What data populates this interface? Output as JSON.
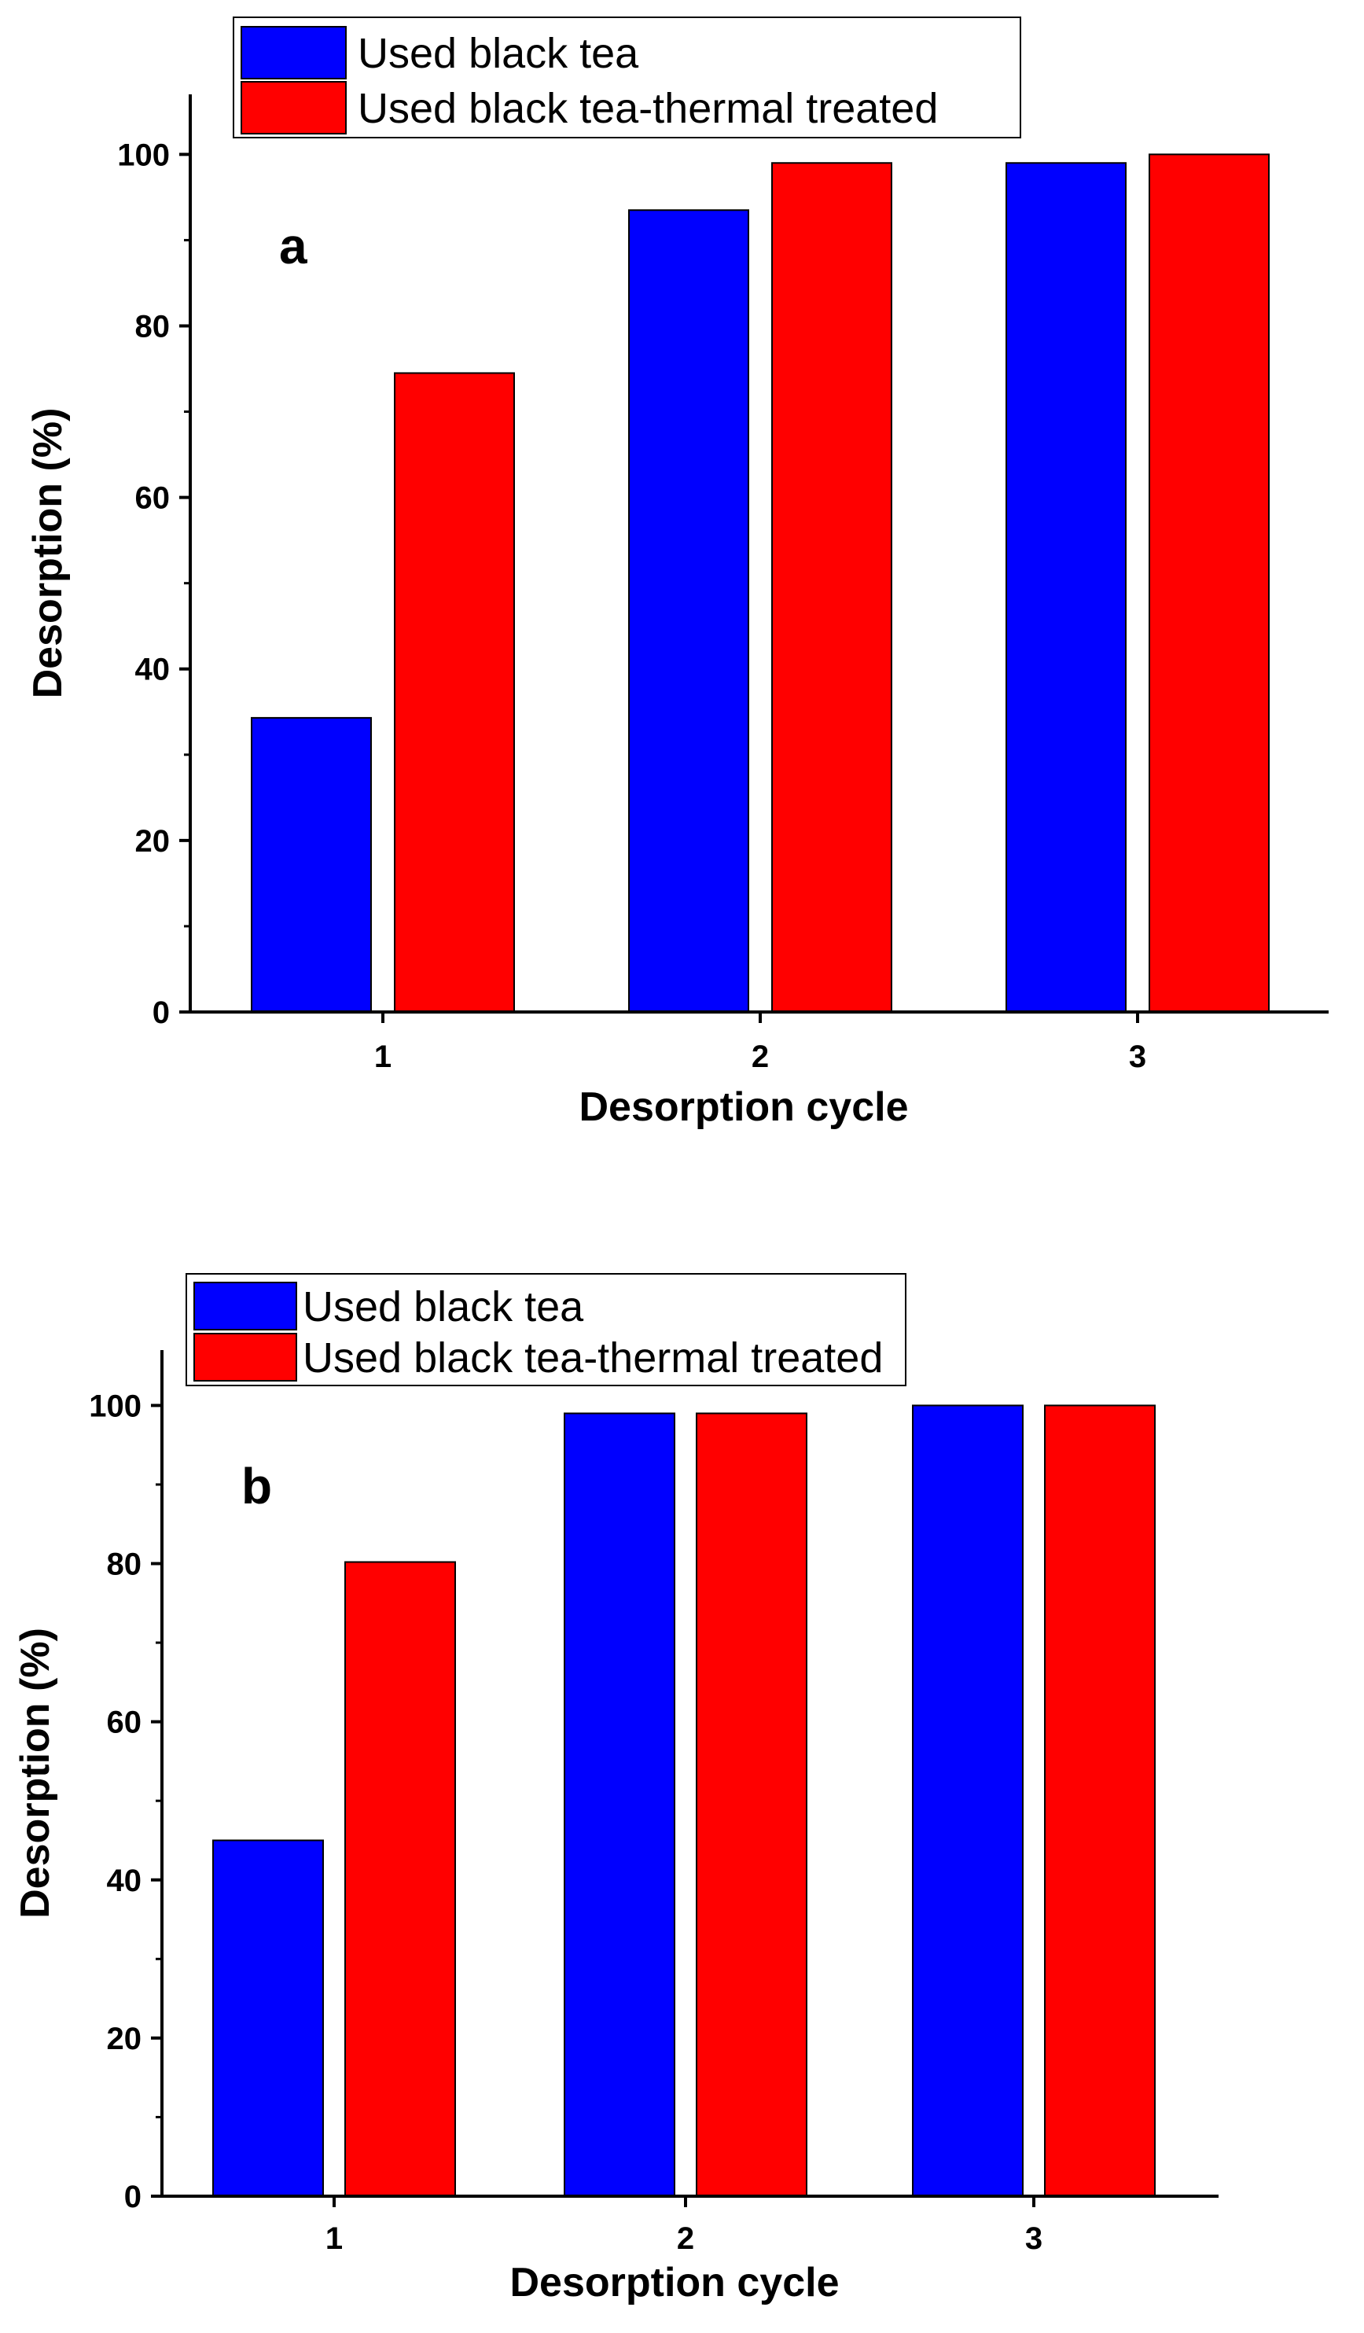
{
  "chart_data": [
    {
      "type": "bar",
      "panel_label": "a",
      "categories": [
        "1",
        "2",
        "3"
      ],
      "series": [
        {
          "name": "Used black tea",
          "color": "#0000ff",
          "values": [
            34.3,
            93.5,
            99.0
          ]
        },
        {
          "name": "Used black tea-thermal treated",
          "color": "#ff0000",
          "values": [
            74.5,
            99.0,
            100.0
          ]
        }
      ],
      "xlabel": "Desorption cycle",
      "ylabel": "Desorption (%)",
      "ylim": [
        0,
        107
      ],
      "yticks": [
        0,
        20,
        40,
        60,
        80,
        100
      ],
      "legend_position": "top-left",
      "grid": false
    },
    {
      "type": "bar",
      "panel_label": "b",
      "categories": [
        "1",
        "2",
        "3"
      ],
      "series": [
        {
          "name": "Used black tea",
          "color": "#0000ff",
          "values": [
            45.0,
            99.0,
            100.0
          ]
        },
        {
          "name": "Used black tea-thermal treated",
          "color": "#ff0000",
          "values": [
            80.2,
            99.0,
            100.0
          ]
        }
      ],
      "xlabel": "Desorption cycle",
      "ylabel": "Desorption (%)",
      "ylim": [
        0,
        107
      ],
      "yticks": [
        0,
        20,
        40,
        60,
        80,
        100
      ],
      "legend_position": "top-left",
      "grid": false
    }
  ]
}
